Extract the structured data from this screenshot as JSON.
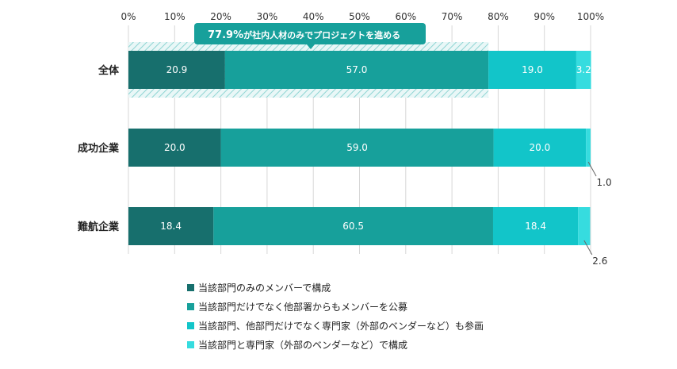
{
  "chart_data": {
    "type": "bar",
    "orientation": "horizontal",
    "stacked": true,
    "categories": [
      "全体",
      "成功企業",
      "難航企業"
    ],
    "series": [
      {
        "name": "当該部門のみのメンバーで構成",
        "color": "#176f6d",
        "values": [
          20.9,
          20.0,
          18.4
        ]
      },
      {
        "name": "当該部門だけでなく他部署からもメンバーを公募",
        "color": "#17a09b",
        "values": [
          57.0,
          59.0,
          60.5
        ]
      },
      {
        "name": "当該部門、他部門だけでなく専門家（外部のベンダーなど）も参画",
        "color": "#12c5c9",
        "values": [
          19.0,
          20.0,
          18.4
        ]
      },
      {
        "name": "当該部門と専門家（外部のベンダーなど）で構成",
        "color": "#36dcdf",
        "values": [
          3.2,
          1.0,
          2.6
        ]
      }
    ],
    "value_labels": [
      [
        "20.9",
        "57.0",
        "19.0",
        "3.2"
      ],
      [
        "20.0",
        "59.0",
        "20.0",
        "1.0"
      ],
      [
        "18.4",
        "60.5",
        "18.4",
        "2.6"
      ]
    ],
    "xlim": [
      0,
      100
    ],
    "xticks": [
      "0%",
      "10%",
      "20%",
      "30%",
      "40%",
      "50%",
      "60%",
      "70%",
      "80%",
      "90%",
      "100%"
    ],
    "grid": true,
    "legend_position": "bottom",
    "annotation": {
      "value": "77.9%",
      "text": "が社内人材のみでプロジェクトを進める",
      "span": [
        0,
        77.9
      ],
      "category": "全体",
      "color": "#17a09b"
    }
  }
}
